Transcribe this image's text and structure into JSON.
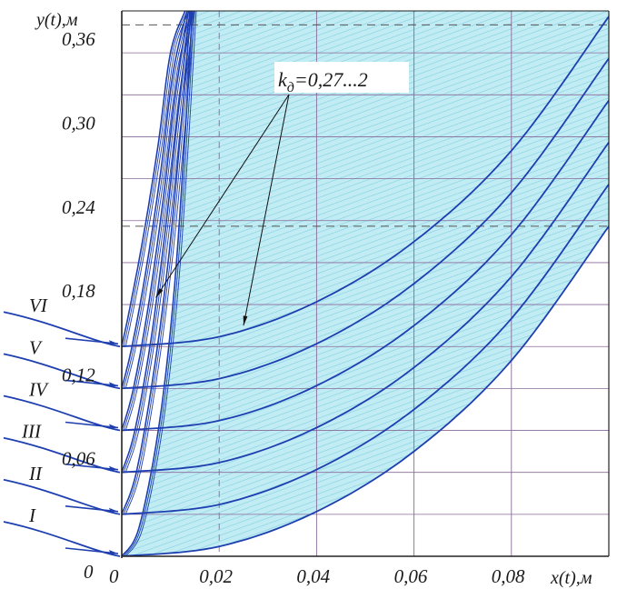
{
  "chart_data": {
    "type": "line",
    "title": "",
    "xlabel": "x(t),м",
    "ylabel": "y(t),м",
    "xlim": [
      0,
      0.1
    ],
    "ylim": [
      0,
      0.39
    ],
    "x_ticks": [
      0.02,
      0.04,
      0.06,
      0.08
    ],
    "x_tick_labels": [
      "0,02",
      "0,04",
      "0,06",
      "0,08"
    ],
    "y_ticks": [
      0.06,
      0.12,
      0.18,
      0.24,
      0.3,
      0.36
    ],
    "y_tick_labels": [
      "0,06",
      "0,12",
      "0,18",
      "0,24",
      "0,30",
      "0,36"
    ],
    "x_origin_label": "0",
    "y_origin_label": "0",
    "grid": true,
    "dashed_levels": [
      0.236,
      0.38
    ],
    "dashed_x": 0.02,
    "fill_color": "#c2ecf4",
    "hatch_color": "#7fcfe0",
    "grid_color": "#8a6a9a",
    "curve_color": "#1e3fb0",
    "annotation": {
      "text": "k",
      "subscript": "д",
      "range_text": "=0,27...2",
      "arrow_targets": [
        {
          "x": 0.007,
          "y": 0.185
        },
        {
          "x": 0.025,
          "y": 0.165
        }
      ]
    },
    "series": [
      {
        "name": "I",
        "y_start": 0.0,
        "steep_x": [
          0,
          0.0035,
          0.0075,
          0.0105,
          0.0126,
          0.0145
        ],
        "steep_y": [
          0,
          0.02,
          0.09,
          0.18,
          0.28,
          0.39
        ],
        "flat_x": [
          0,
          0.02,
          0.04,
          0.06,
          0.08,
          0.1
        ],
        "flat_y": [
          0,
          0.007,
          0.032,
          0.075,
          0.14,
          0.236
        ]
      },
      {
        "name": "II",
        "y_start": 0.03,
        "steep_x": [
          0,
          0.003,
          0.0065,
          0.0095,
          0.012,
          0.0142
        ],
        "steep_y": [
          0.03,
          0.06,
          0.13,
          0.21,
          0.3,
          0.39
        ],
        "flat_x": [
          0,
          0.02,
          0.04,
          0.06,
          0.08,
          0.1
        ],
        "flat_y": [
          0.03,
          0.037,
          0.062,
          0.105,
          0.17,
          0.266
        ]
      },
      {
        "name": "III",
        "y_start": 0.06,
        "steep_x": [
          0,
          0.0027,
          0.006,
          0.009,
          0.0115,
          0.014
        ],
        "steep_y": [
          0.06,
          0.09,
          0.155,
          0.235,
          0.315,
          0.39
        ],
        "flat_x": [
          0,
          0.02,
          0.04,
          0.06,
          0.08,
          0.1
        ],
        "flat_y": [
          0.06,
          0.067,
          0.092,
          0.135,
          0.2,
          0.296
        ]
      },
      {
        "name": "IV",
        "y_start": 0.09,
        "steep_x": [
          0,
          0.0024,
          0.0055,
          0.0085,
          0.011,
          0.0137
        ],
        "steep_y": [
          0.09,
          0.12,
          0.18,
          0.255,
          0.33,
          0.39
        ],
        "flat_x": [
          0,
          0.02,
          0.04,
          0.06,
          0.08,
          0.1
        ],
        "flat_y": [
          0.09,
          0.097,
          0.122,
          0.165,
          0.23,
          0.326
        ]
      },
      {
        "name": "V",
        "y_start": 0.12,
        "steep_x": [
          0,
          0.0021,
          0.005,
          0.008,
          0.0105,
          0.0134
        ],
        "steep_y": [
          0.12,
          0.15,
          0.205,
          0.275,
          0.345,
          0.39
        ],
        "flat_x": [
          0,
          0.02,
          0.04,
          0.06,
          0.08,
          0.1
        ],
        "flat_y": [
          0.12,
          0.127,
          0.152,
          0.195,
          0.26,
          0.356
        ]
      },
      {
        "name": "VI",
        "y_start": 0.15,
        "steep_x": [
          0,
          0.0018,
          0.0045,
          0.0075,
          0.01,
          0.013
        ],
        "steep_y": [
          0.15,
          0.18,
          0.23,
          0.295,
          0.36,
          0.39
        ],
        "flat_x": [
          0,
          0.02,
          0.04,
          0.06,
          0.08,
          0.1
        ],
        "flat_y": [
          0.15,
          0.157,
          0.182,
          0.225,
          0.29,
          0.386
        ]
      }
    ]
  }
}
